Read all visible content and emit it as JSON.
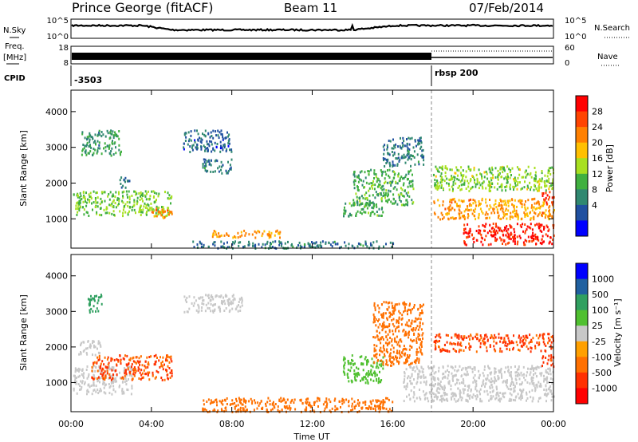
{
  "header": {
    "station": "Prince George (fitACF)",
    "beam": "Beam 11",
    "date": "07/Feb/2014"
  },
  "panels": {
    "nsky": {
      "left_label": "N.Sky",
      "right_label": "N.Search",
      "left_ticks": [
        "10^5",
        "10^0"
      ],
      "right_ticks": [
        "10^5",
        "10^0"
      ]
    },
    "freq": {
      "left_label_1": "Freq.",
      "left_label_2": "[MHz]",
      "left_ticks": [
        "18",
        "8"
      ],
      "right_ticks": [
        "60",
        "0"
      ],
      "right_label": "Nave"
    },
    "cpid": {
      "label": "CPID",
      "first_value": "-3503",
      "second_value": "rbsp 200",
      "switch_time_hours": 18.0
    }
  },
  "colorbars": {
    "power": {
      "label": "Power [dB]",
      "ticks": [
        "28",
        "24",
        "20",
        "16",
        "12",
        "8",
        "4"
      ],
      "colors": [
        "#ff0000",
        "#ff4400",
        "#ff8000",
        "#ffc000",
        "#a8e020",
        "#40b040",
        "#308870",
        "#2050a0",
        "#0000ff"
      ]
    },
    "velocity": {
      "label": "Velocity [m s⁻¹]",
      "ticks": [
        "1000",
        "500",
        "100",
        "25",
        "-25",
        "-100",
        "-500",
        "-1000"
      ],
      "colors": [
        "#0000ff",
        "#2060a0",
        "#30a060",
        "#50c030",
        "#c8c8c8",
        "#ffa000",
        "#ff7000",
        "#ff3000",
        "#ff0000"
      ]
    }
  },
  "axes": {
    "ylabel": "Slant Range [km]",
    "yticks": [
      "4000",
      "3000",
      "2000",
      "1000"
    ],
    "xlabel": "Time UT",
    "xticks": [
      "00:00",
      "04:00",
      "08:00",
      "12:00",
      "16:00",
      "20:00",
      "00:00"
    ]
  },
  "chart_data": [
    {
      "type": "heatmap",
      "quantity": "power_dB",
      "ylabel": "Slant Range [km]",
      "xlim_hours": [
        0,
        24
      ],
      "ylim_km": [
        180,
        4600
      ],
      "clim": [
        0,
        32
      ],
      "patches": [
        {
          "t": [
            0.1,
            5.0
          ],
          "r": [
            1100,
            1800
          ],
          "v": 14
        },
        {
          "t": [
            4.0,
            5.0
          ],
          "r": [
            1050,
            1350
          ],
          "v": 23
        },
        {
          "t": [
            0.5,
            2.5
          ],
          "r": [
            2800,
            3500
          ],
          "v": 10
        },
        {
          "t": [
            2.3,
            2.9
          ],
          "r": [
            1900,
            2200
          ],
          "v": 8
        },
        {
          "t": [
            5.5,
            8.0
          ],
          "r": [
            2900,
            3500
          ],
          "v": 6
        },
        {
          "t": [
            6.5,
            8.0
          ],
          "r": [
            2300,
            2700
          ],
          "v": 8
        },
        {
          "t": [
            6.0,
            16.0
          ],
          "r": [
            200,
            400
          ],
          "v": 8
        },
        {
          "t": [
            7.0,
            10.5
          ],
          "r": [
            500,
            700
          ],
          "v": 22
        },
        {
          "t": [
            13.5,
            15.5
          ],
          "r": [
            1100,
            1500
          ],
          "v": 12
        },
        {
          "t": [
            14.0,
            17.0
          ],
          "r": [
            1400,
            2400
          ],
          "v": 12
        },
        {
          "t": [
            15.5,
            17.5
          ],
          "r": [
            2500,
            3300
          ],
          "v": 8
        },
        {
          "t": [
            18.0,
            24.0
          ],
          "r": [
            1800,
            2500
          ],
          "v": 15
        },
        {
          "t": [
            18.0,
            24.0
          ],
          "r": [
            1000,
            1600
          ],
          "v": 22
        },
        {
          "t": [
            19.5,
            24.0
          ],
          "r": [
            300,
            900
          ],
          "v": 29
        },
        {
          "t": [
            23.4,
            24.0
          ],
          "r": [
            1400,
            1800
          ],
          "v": 28
        }
      ]
    },
    {
      "type": "heatmap",
      "quantity": "velocity_m_s",
      "ylabel": "Slant Range [km]",
      "xlim_hours": [
        0,
        24
      ],
      "ylim_km": [
        180,
        4600
      ],
      "clim": [
        -1000,
        1000
      ],
      "patches": [
        {
          "t": [
            0.1,
            3.0
          ],
          "r": [
            700,
            1500
          ],
          "v": 0
        },
        {
          "t": [
            1.0,
            5.0
          ],
          "r": [
            1100,
            1800
          ],
          "v": -300
        },
        {
          "t": [
            0.3,
            1.5
          ],
          "r": [
            1800,
            2200
          ],
          "v": 0
        },
        {
          "t": [
            0.8,
            1.6
          ],
          "r": [
            3000,
            3500
          ],
          "v": 150
        },
        {
          "t": [
            5.6,
            8.5
          ],
          "r": [
            3000,
            3500
          ],
          "v": 0
        },
        {
          "t": [
            6.5,
            16.0
          ],
          "r": [
            200,
            600
          ],
          "v": -150
        },
        {
          "t": [
            13.5,
            15.5
          ],
          "r": [
            1000,
            1800
          ],
          "v": 50
        },
        {
          "t": [
            15.0,
            17.5
          ],
          "r": [
            1500,
            3300
          ],
          "v": -200
        },
        {
          "t": [
            18.0,
            24.0
          ],
          "r": [
            1900,
            2400
          ],
          "v": -350
        },
        {
          "t": [
            16.5,
            24.0
          ],
          "r": [
            500,
            1500
          ],
          "v": 0
        },
        {
          "t": [
            23.4,
            24.0
          ],
          "r": [
            1400,
            1800
          ],
          "v": -400
        }
      ]
    }
  ]
}
